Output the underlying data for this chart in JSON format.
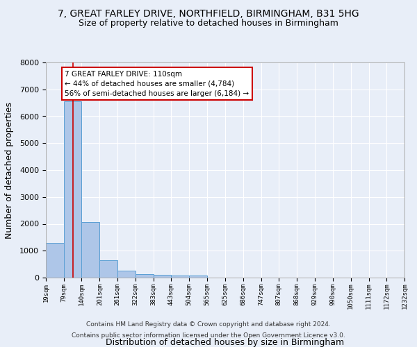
{
  "title1": "7, GREAT FARLEY DRIVE, NORTHFIELD, BIRMINGHAM, B31 5HG",
  "title2": "Size of property relative to detached houses in Birmingham",
  "xlabel": "Distribution of detached houses by size in Birmingham",
  "ylabel": "Number of detached properties",
  "footer1": "Contains HM Land Registry data © Crown copyright and database right 2024.",
  "footer2": "Contains public sector information licensed under the Open Government Licence v3.0.",
  "annotation_title": "7 GREAT FARLEY DRIVE: 110sqm",
  "annotation_line1": "← 44% of detached houses are smaller (4,784)",
  "annotation_line2": "56% of semi-detached houses are larger (6,184) →",
  "property_size": 110,
  "bin_edges": [
    19,
    79,
    140,
    201,
    261,
    322,
    383,
    443,
    504,
    565,
    625,
    686,
    747,
    807,
    868,
    929,
    990,
    1050,
    1111,
    1172,
    1232
  ],
  "bar_heights": [
    1300,
    6550,
    2075,
    650,
    250,
    130,
    100,
    75,
    70,
    0,
    0,
    0,
    0,
    0,
    0,
    0,
    0,
    0,
    0,
    0
  ],
  "bar_color": "#aec6e8",
  "bar_edge_color": "#5a9fd4",
  "line_color": "#cc0000",
  "ylim": [
    0,
    8000
  ],
  "background_color": "#e8eef8",
  "grid_color": "#ffffff",
  "annotation_box_color": "#cc0000"
}
